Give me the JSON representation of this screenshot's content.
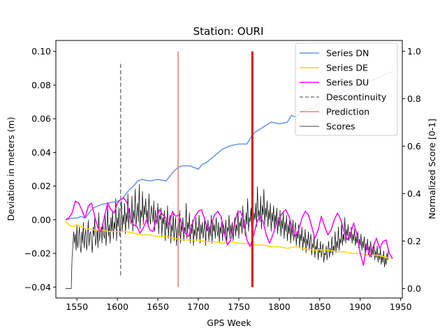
{
  "chart_data": {
    "type": "line",
    "title": "Station: OURI",
    "xlabel": "GPS Week",
    "ylabel": "Deviation in meters (m)",
    "y2label": "Normalized Score [0-1]",
    "xlim": [
      1524,
      1952
    ],
    "ylim": [
      -0.0465,
      0.1065
    ],
    "y2lim": [
      -0.04,
      1.045
    ],
    "xticks": [
      1550,
      1600,
      1650,
      1700,
      1750,
      1800,
      1850,
      1900,
      1950
    ],
    "yticks": [
      -0.04,
      -0.02,
      0.0,
      0.02,
      0.04,
      0.06,
      0.08,
      0.1
    ],
    "y2ticks": [
      0.0,
      0.2,
      0.4,
      0.6,
      0.8,
      1.0
    ],
    "xtick_labels": [
      "1550",
      "1600",
      "1650",
      "1700",
      "1750",
      "1800",
      "1850",
      "1900",
      "1950"
    ],
    "ytick_labels": [
      "−0.04",
      "−0.02",
      "0.00",
      "0.02",
      "0.04",
      "0.06",
      "0.08",
      "0.10"
    ],
    "y2tick_labels": [
      "0.0",
      "0.2",
      "0.4",
      "0.6",
      "0.8",
      "1.0"
    ],
    "grid": false,
    "legend_position": "top-right",
    "series": [
      {
        "name": "Series DN",
        "color": "#6495ed",
        "axis": "left",
        "x": [
          1536,
          1545,
          1550,
          1555,
          1560,
          1565,
          1570,
          1575,
          1580,
          1590,
          1600,
          1605,
          1610,
          1615,
          1620,
          1625,
          1630,
          1640,
          1650,
          1660,
          1665,
          1670,
          1675,
          1680,
          1690,
          1700,
          1705,
          1710,
          1715,
          1720,
          1725,
          1730,
          1740,
          1750,
          1760,
          1765,
          1770,
          1780,
          1790,
          1800,
          1810,
          1815,
          1820,
          1830,
          1840,
          1850,
          1860,
          1870,
          1880,
          1890,
          1900,
          1910,
          1920,
          1930,
          1940
        ],
        "y": [
          0.0,
          0.001,
          0.001,
          0.002,
          0.001,
          0.004,
          0.007,
          0.008,
          0.009,
          0.01,
          0.011,
          0.012,
          0.015,
          0.018,
          0.02,
          0.023,
          0.024,
          0.023,
          0.024,
          0.023,
          0.026,
          0.029,
          0.031,
          0.032,
          0.032,
          0.03,
          0.033,
          0.034,
          0.036,
          0.038,
          0.04,
          0.042,
          0.044,
          0.045,
          0.045,
          0.049,
          0.052,
          0.055,
          0.058,
          0.057,
          0.058,
          0.062,
          0.061,
          0.065,
          0.066,
          0.07,
          0.073,
          0.074,
          0.076,
          0.078,
          0.08,
          0.082,
          0.084,
          0.086,
          0.088
        ]
      },
      {
        "name": "Series DE",
        "color": "#ffd700",
        "axis": "left",
        "x": [
          1536,
          1540,
          1545,
          1550,
          1560,
          1570,
          1580,
          1590,
          1600,
          1610,
          1620,
          1630,
          1640,
          1650,
          1660,
          1670,
          1680,
          1690,
          1700,
          1710,
          1720,
          1730,
          1740,
          1750,
          1760,
          1770,
          1780,
          1790,
          1800,
          1810,
          1820,
          1830,
          1840,
          1850,
          1860,
          1870,
          1880,
          1890,
          1900,
          1910,
          1920,
          1930,
          1940
        ],
        "y": [
          -0.001,
          -0.003,
          -0.004,
          -0.003,
          -0.005,
          -0.006,
          -0.006,
          -0.007,
          -0.007,
          -0.007,
          -0.008,
          -0.009,
          -0.009,
          -0.01,
          -0.01,
          -0.011,
          -0.012,
          -0.012,
          -0.012,
          -0.013,
          -0.013,
          -0.014,
          -0.013,
          -0.014,
          -0.014,
          -0.015,
          -0.015,
          -0.016,
          -0.016,
          -0.017,
          -0.016,
          -0.017,
          -0.018,
          -0.018,
          -0.018,
          -0.019,
          -0.019,
          -0.02,
          -0.02,
          -0.021,
          -0.021,
          -0.022,
          -0.023
        ]
      },
      {
        "name": "Series DU",
        "color": "#ff00ff",
        "axis": "left",
        "x": [
          1536,
          1540,
          1544,
          1548,
          1552,
          1556,
          1560,
          1564,
          1568,
          1572,
          1576,
          1580,
          1584,
          1588,
          1592,
          1596,
          1600,
          1604,
          1608,
          1612,
          1616,
          1620,
          1624,
          1628,
          1632,
          1636,
          1640,
          1644,
          1648,
          1652,
          1656,
          1660,
          1664,
          1668,
          1672,
          1676,
          1680,
          1684,
          1688,
          1692,
          1696,
          1700,
          1704,
          1708,
          1712,
          1716,
          1720,
          1724,
          1728,
          1732,
          1736,
          1740,
          1744,
          1748,
          1752,
          1756,
          1760,
          1764,
          1768,
          1772,
          1776,
          1780,
          1784,
          1788,
          1792,
          1796,
          1800,
          1804,
          1808,
          1812,
          1816,
          1820,
          1824,
          1828,
          1832,
          1836,
          1840,
          1844,
          1848,
          1852,
          1856,
          1860,
          1864,
          1868,
          1872,
          1876,
          1880,
          1884,
          1888,
          1892,
          1896,
          1900,
          1904,
          1908,
          1912,
          1916,
          1920,
          1924,
          1928,
          1932,
          1936,
          1940
        ],
        "y": [
          0.0,
          0.001,
          0.004,
          0.011,
          0.01,
          0.006,
          0.001,
          0.008,
          0.01,
          0.002,
          -0.005,
          -0.007,
          0.002,
          0.01,
          0.006,
          0.004,
          0.01,
          0.012,
          0.013,
          0.01,
          0.001,
          -0.003,
          -0.004,
          -0.008,
          -0.005,
          0.0,
          -0.006,
          -0.007,
          0.0,
          0.006,
          0.003,
          0.001,
          -0.003,
          0.005,
          0.002,
          0.003,
          -0.003,
          -0.008,
          -0.01,
          -0.003,
          0.002,
          0.005,
          0.006,
          0.0,
          -0.006,
          -0.003,
          0.003,
          0.005,
          0.002,
          -0.008,
          -0.015,
          -0.012,
          -0.004,
          0.004,
          0.005,
          0.0,
          -0.012,
          -0.016,
          -0.01,
          -0.002,
          0.002,
          -0.001,
          -0.009,
          -0.014,
          -0.009,
          -0.003,
          0.001,
          0.004,
          0.006,
          0.002,
          -0.005,
          -0.01,
          -0.006,
          0.001,
          0.005,
          0.003,
          -0.004,
          -0.011,
          -0.006,
          0.002,
          -0.004,
          -0.009,
          -0.006,
          0.0,
          0.004,
          0.0,
          -0.007,
          -0.012,
          -0.008,
          -0.002,
          -0.009,
          -0.02,
          -0.027,
          -0.015,
          -0.022,
          -0.016,
          -0.011,
          -0.017,
          -0.013,
          -0.012,
          -0.02,
          -0.023
        ]
      }
    ],
    "discontinuities": [
      {
        "name": "Descontinuity",
        "color": "#808080",
        "style": "dashed",
        "x": 1604,
        "y_from": -0.033,
        "y_to": 0.094
      }
    ],
    "predictions": [
      {
        "name": "Prediction",
        "color": "#f08080",
        "x": 1675,
        "y_from": -0.04,
        "y_to": 0.1
      },
      {
        "name": "Prediction",
        "color": "#ff3030",
        "x": 1767,
        "y_from": -0.04,
        "y_to": 0.1
      }
    ],
    "scores": {
      "name": "Scores",
      "color": "#000000",
      "axis": "right",
      "x_start": 1536,
      "x_step": 1,
      "values": [
        0.0,
        0.0,
        0.0,
        0.0,
        0.0,
        0.0,
        0.0,
        0.0,
        0.13,
        0.18,
        0.24,
        0.19,
        0.23,
        0.16,
        0.27,
        0.17,
        0.21,
        0.26,
        0.18,
        0.15,
        0.24,
        0.19,
        0.28,
        0.17,
        0.22,
        0.25,
        0.16,
        0.2,
        0.29,
        0.18,
        0.23,
        0.24,
        0.19,
        0.15,
        0.26,
        0.22,
        0.3,
        0.18,
        0.21,
        0.25,
        0.17,
        0.32,
        0.2,
        0.24,
        0.26,
        0.19,
        0.28,
        0.23,
        0.21,
        0.31,
        0.18,
        0.25,
        0.35,
        0.22,
        0.27,
        0.19,
        0.3,
        0.24,
        0.33,
        0.21,
        0.28,
        0.25,
        0.38,
        0.2,
        0.3,
        0.26,
        0.34,
        0.22,
        0.29,
        0.37,
        0.24,
        0.31,
        0.27,
        0.36,
        0.23,
        0.32,
        0.28,
        0.4,
        0.25,
        0.34,
        0.3,
        0.27,
        0.39,
        0.24,
        0.33,
        0.29,
        0.42,
        0.26,
        0.31,
        0.36,
        0.28,
        0.44,
        0.25,
        0.33,
        0.3,
        0.41,
        0.27,
        0.35,
        0.31,
        0.38,
        0.29,
        0.33,
        0.26,
        0.4,
        0.3,
        0.27,
        0.35,
        0.32,
        0.28,
        0.37,
        0.24,
        0.33,
        0.3,
        0.27,
        0.36,
        0.23,
        0.31,
        0.29,
        0.34,
        0.22,
        0.3,
        0.27,
        0.33,
        0.2,
        0.29,
        0.25,
        0.35,
        0.21,
        0.28,
        0.31,
        0.19,
        0.27,
        0.24,
        0.32,
        0.2,
        0.26,
        0.3,
        0.18,
        0.25,
        0.28,
        0.22,
        0.33,
        0.19,
        0.27,
        0.24,
        0.3,
        0.2,
        0.26,
        0.23,
        0.36,
        0.21,
        0.28,
        0.25,
        0.32,
        0.19,
        0.27,
        0.23,
        0.29,
        0.18,
        0.25,
        0.22,
        0.3,
        0.2,
        0.26,
        0.24,
        0.31,
        0.19,
        0.27,
        0.23,
        0.28,
        0.21,
        0.25,
        0.3,
        0.18,
        0.27,
        0.24,
        0.29,
        0.2,
        0.26,
        0.22,
        0.31,
        0.19,
        0.28,
        0.24,
        0.27,
        0.21,
        0.3,
        0.25,
        0.22,
        0.28,
        0.19,
        0.26,
        0.23,
        0.3,
        0.2,
        0.27,
        0.25,
        0.22,
        0.29,
        0.19,
        0.26,
        0.24,
        0.31,
        0.21,
        0.27,
        0.23,
        0.28,
        0.2,
        0.25,
        0.3,
        0.22,
        0.27,
        0.24,
        0.33,
        0.21,
        0.28,
        0.26,
        0.3,
        0.23,
        0.35,
        0.25,
        0.29,
        0.22,
        0.32,
        0.27,
        0.38,
        0.24,
        0.3,
        0.28,
        0.34,
        0.25,
        0.41,
        0.27,
        0.32,
        0.29,
        0.36,
        0.26,
        0.43,
        0.3,
        0.33,
        0.28,
        0.39,
        0.25,
        0.35,
        0.31,
        0.42,
        0.27,
        0.34,
        0.3,
        0.37,
        0.26,
        0.33,
        0.29,
        0.36,
        0.24,
        0.32,
        0.28,
        0.35,
        0.25,
        0.31,
        0.27,
        0.34,
        0.23,
        0.3,
        0.26,
        0.33,
        0.22,
        0.29,
        0.25,
        0.32,
        0.21,
        0.28,
        0.24,
        0.31,
        0.2,
        0.27,
        0.23,
        0.3,
        0.19,
        0.26,
        0.22,
        0.29,
        0.2,
        0.25,
        0.28,
        0.18,
        0.24,
        0.21,
        0.27,
        0.17,
        0.23,
        0.2,
        0.26,
        0.16,
        0.22,
        0.19,
        0.25,
        0.15,
        0.21,
        0.18,
        0.24,
        0.16,
        0.2,
        0.23,
        0.14,
        0.19,
        0.17,
        0.22,
        0.13,
        0.18,
        0.16,
        0.21,
        0.12,
        0.17,
        0.15,
        0.2,
        0.13,
        0.16,
        0.19,
        0.11,
        0.15,
        0.14,
        0.18,
        0.12,
        0.16,
        0.2,
        0.13,
        0.17,
        0.15,
        0.22,
        0.14,
        0.18,
        0.16,
        0.24,
        0.15,
        0.2,
        0.17,
        0.26,
        0.16,
        0.21,
        0.19,
        0.28,
        0.18,
        0.23,
        0.2,
        0.3,
        0.19,
        0.25,
        0.22,
        0.27,
        0.2,
        0.24,
        0.21,
        0.26,
        0.19,
        0.23,
        0.2,
        0.25,
        0.18,
        0.22,
        0.19,
        0.24,
        0.17,
        0.21,
        0.18,
        0.23,
        0.16,
        0.2,
        0.17,
        0.22,
        0.15,
        0.19,
        0.16,
        0.21,
        0.14,
        0.18,
        0.15,
        0.2,
        0.13,
        0.17,
        0.14,
        0.19,
        0.12,
        0.16,
        0.13,
        0.18,
        0.11,
        0.15,
        0.12,
        0.17,
        0.1,
        0.14,
        0.11,
        0.16,
        0.09,
        0.13,
        0.1,
        0.15,
        0.12,
        0.17
      ]
    }
  }
}
